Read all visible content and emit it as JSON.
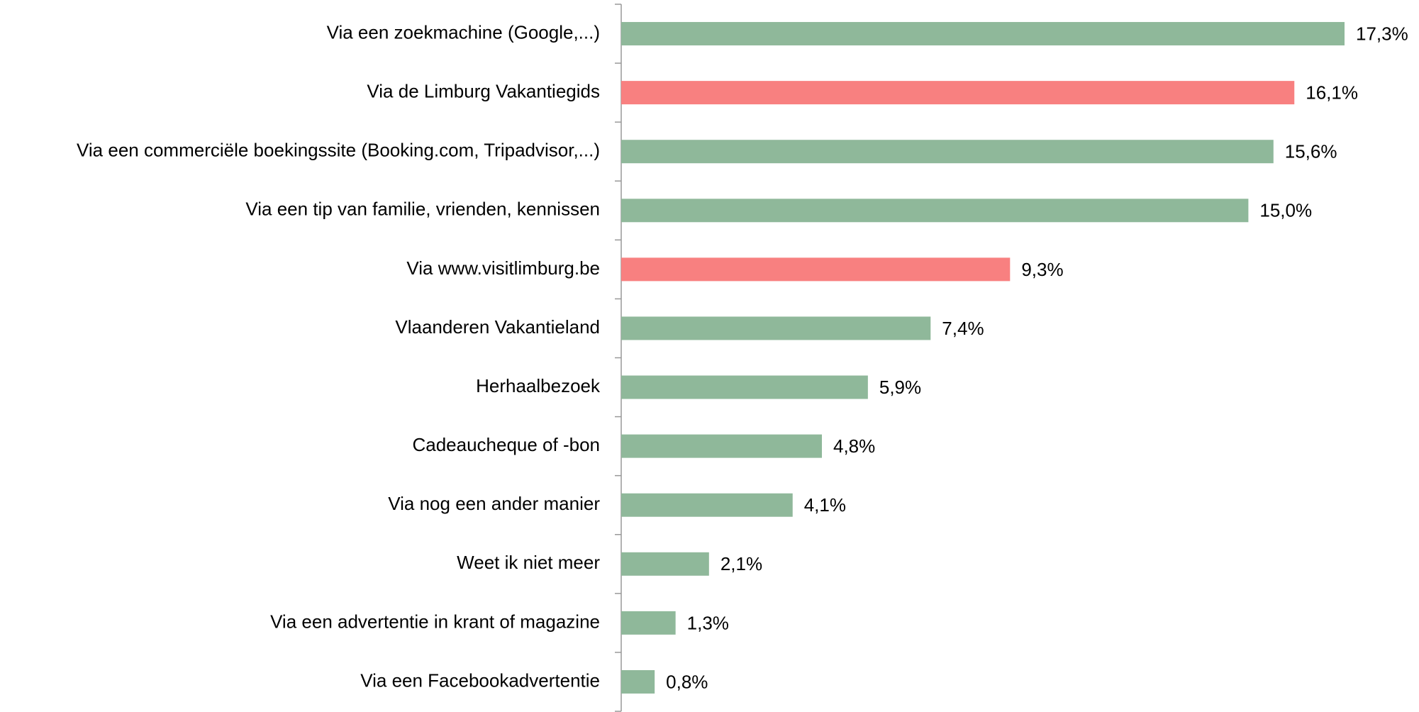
{
  "chart_data": {
    "type": "barh",
    "categories": [
      "Via een zoekmachine (Google,...)",
      "Via de Limburg Vakantiegids",
      "Via een commerciële boekingssite (Booking.com, Tripadvisor,...)",
      "Via een tip van familie, vrienden, kennissen",
      "Via www.visitlimburg.be",
      "Vlaanderen Vakantieland",
      "Herhaalbezoek",
      "Cadeaucheque of -bon",
      "Via nog een ander manier",
      "Weet ik niet meer",
      "Via een advertentie in krant of magazine",
      "Via een Facebookadvertentie"
    ],
    "values": [
      17.3,
      16.1,
      15.6,
      15.0,
      9.3,
      7.4,
      5.9,
      4.8,
      4.1,
      2.1,
      1.3,
      0.8
    ],
    "value_labels": [
      "17,3%",
      "16,1%",
      "15,6%",
      "15,0%",
      "9,3%",
      "7,4%",
      "5,9%",
      "4,8%",
      "4,1%",
      "2,1%",
      "1,3%",
      "0,8%"
    ],
    "colors": [
      "#8fb89a",
      "#f88080",
      "#8fb89a",
      "#8fb89a",
      "#f88080",
      "#8fb89a",
      "#8fb89a",
      "#8fb89a",
      "#8fb89a",
      "#8fb89a",
      "#8fb89a",
      "#8fb89a"
    ]
  }
}
